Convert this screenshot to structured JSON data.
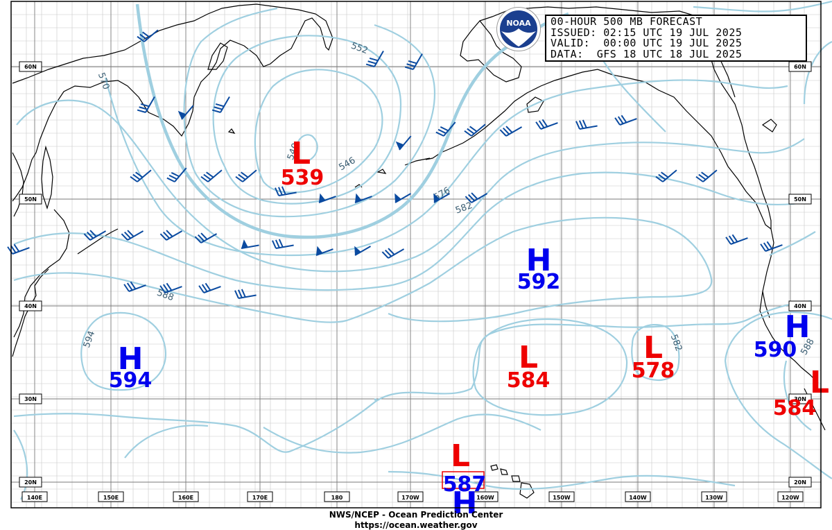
{
  "header": {
    "line1": "00-HOUR 500 MB FORECAST",
    "line2": "ISSUED: 02:15 UTC 19 JUL 2025",
    "line3": "VALID:  00:00 UTC 19 JUL 2025",
    "line4": "DATA:  GFS 18 UTC 18 JUL 2025"
  },
  "logo_icon": "noaa-logo-icon",
  "footer": {
    "line1": "NWS/NCEP - Ocean Prediction Center",
    "line2": "https://ocean.weather.gov"
  },
  "longitude_labels": [
    "140E",
    "150E",
    "160E",
    "170E",
    "180",
    "170W",
    "160W",
    "150W",
    "140W",
    "130W",
    "120W"
  ],
  "latitude_labels": [
    "60N",
    "50N",
    "40N",
    "30N",
    "20N"
  ],
  "contour_labels": [
    "540",
    "546",
    "552",
    "570",
    "576",
    "582",
    "588",
    "594",
    "582",
    "588"
  ],
  "pressure_centers": [
    {
      "type": "L",
      "value": "539",
      "color": "#ee0000"
    },
    {
      "type": "H",
      "value": "592",
      "color": "#0000ee"
    },
    {
      "type": "H",
      "value": "594",
      "color": "#0000ee"
    },
    {
      "type": "L",
      "value": "584",
      "color": "#ee0000"
    },
    {
      "type": "L",
      "value": "578",
      "color": "#ee0000"
    },
    {
      "type": "H",
      "value": "590",
      "color": "#0000ee"
    },
    {
      "type": "L",
      "value": "584",
      "color": "#ee0000"
    },
    {
      "type": "L",
      "value": "",
      "color": "#ee0000"
    },
    {
      "type": "",
      "value": "587",
      "color": "#0000ee"
    }
  ],
  "colors": {
    "contour": "#9fcfe0",
    "wind_barb": "#0a4aa0",
    "grid": "#7a7a7a",
    "coast": "#000000",
    "high": "#0000ee",
    "low": "#ee0000"
  }
}
